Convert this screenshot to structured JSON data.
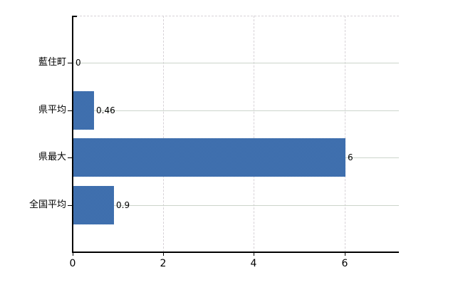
{
  "chart_data": {
    "type": "bar",
    "orientation": "horizontal",
    "title": "",
    "xlabel": "",
    "ylabel": "",
    "categories": [
      "藍住町",
      "県平均",
      "県最大",
      "全国平均"
    ],
    "values": [
      0,
      0.46,
      6,
      0.9
    ],
    "value_labels": [
      "0",
      "0.46",
      "6",
      "0.9"
    ],
    "x_tick_values": [
      0,
      2,
      4,
      6
    ],
    "x_tick_labels": [
      "0",
      "2",
      "4",
      "6"
    ],
    "xlim": [
      0,
      7.2
    ],
    "grid": true,
    "legend_position": "none",
    "colors": {
      "bar_fill": "#3d6caa",
      "bar_dither_dark": "#31629f",
      "bar_dither_light": "#4d7cbc",
      "grid_horizontal": "#ccd5cb",
      "grid_vertical": "#d7d2d7",
      "axis": "#000000",
      "background": "#ffffff",
      "text": "#000000"
    }
  }
}
